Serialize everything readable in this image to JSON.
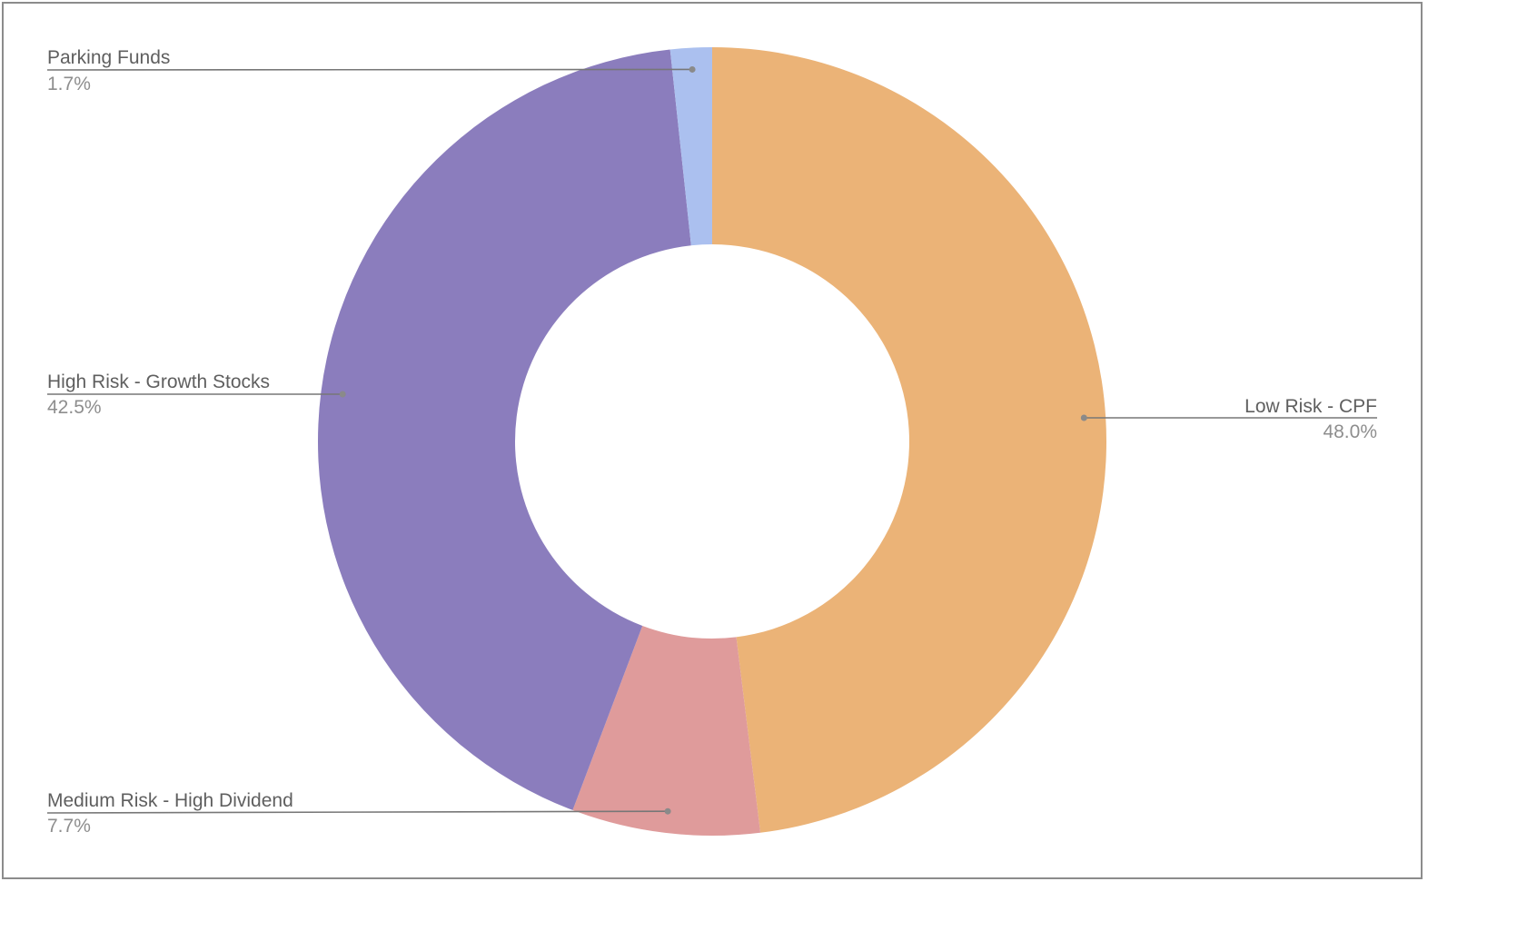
{
  "chart_data": {
    "type": "pie",
    "donut": true,
    "title": "",
    "slices": [
      {
        "label": "Low Risk - CPF",
        "value": 48.0,
        "display": "48.0%",
        "color": "#ebb377"
      },
      {
        "label": "Medium Risk - High Dividend",
        "value": 7.7,
        "display": "7.7%",
        "color": "#df9b9b"
      },
      {
        "label": "High Risk - Growth Stocks",
        "value": 42.5,
        "display": "42.5%",
        "color": "#8b7dbd"
      },
      {
        "label": "Parking Funds",
        "value": 1.7,
        "display": "1.7%",
        "color": "#abc0ef"
      }
    ],
    "start_angle": "12 o'clock",
    "direction": "clockwise",
    "legend": "callout labels beside slices",
    "grid": false
  },
  "colors": {
    "leader_line": "#777777",
    "label_name": "#5f5f5f",
    "label_value": "#8e8e8e",
    "frame_border": "#8c8c8c"
  }
}
